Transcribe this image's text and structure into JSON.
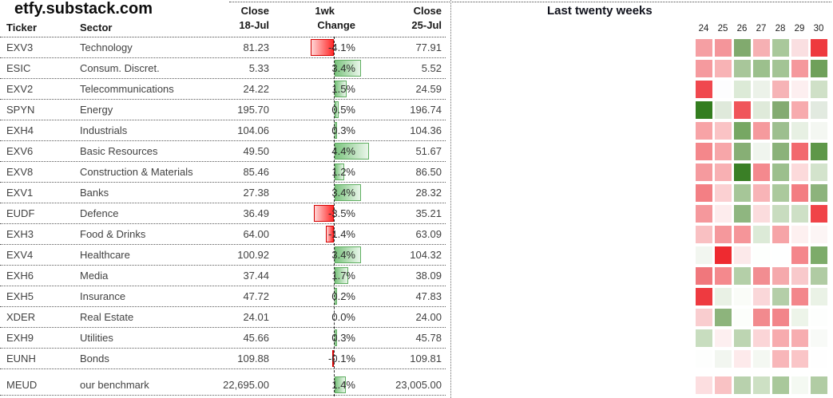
{
  "site_title": "etfy.substack.com",
  "header": {
    "ticker": "Ticker",
    "sector": "Sector",
    "close_prev": [
      "Close",
      "18-Jul"
    ],
    "change": [
      "1wk",
      "Change"
    ],
    "close_last": [
      "Close",
      "25-Jul"
    ]
  },
  "heatmap": {
    "title": "Last twenty weeks",
    "week_labels": [
      "24",
      "25",
      "26",
      "27",
      "28",
      "29",
      "30"
    ]
  },
  "chart_data": {
    "type": "table",
    "title": "etfy.substack.com",
    "columns": [
      "Ticker",
      "Sector",
      "Close 18-Jul",
      "1wk Change",
      "Close 25-Jul",
      "Last twenty weeks"
    ],
    "change_bar_axis": {
      "max_positive_pct": 4.4,
      "max_negative_pct": 4.1
    },
    "rows": [
      {
        "ticker": "EXV3",
        "sector": "Technology",
        "close_prev": "81.23",
        "change_pct": "-4.1%",
        "change_value": -4.1,
        "close_last": "77.91",
        "weekly_heat": [
          "#f59fa3",
          "#f4959a",
          "#81aa6e",
          "#f6b0b3",
          "#a9c89b",
          "#fadfe1",
          "#ee393e"
        ]
      },
      {
        "ticker": "ESIC",
        "sector": "Consum. Discret.",
        "close_prev": "5.33",
        "change_pct": "3.4%",
        "change_value": 3.4,
        "close_last": "5.52",
        "weekly_heat": [
          "#f59a9e",
          "#f8b3b5",
          "#a8c69a",
          "#9cc08d",
          "#a3c495",
          "#f5989c",
          "#6fa05a"
        ]
      },
      {
        "ticker": "EXV2",
        "sector": "Telecommunications",
        "close_prev": "24.22",
        "change_pct": "1.5%",
        "change_value": 1.5,
        "close_last": "24.59",
        "weekly_heat": [
          "#f0484e",
          "#fdfdfe",
          "#dcead7",
          "#ecf2e9",
          "#f6b3b6",
          "#fdeff0",
          "#cfe0c7"
        ]
      },
      {
        "ticker": "SPYN",
        "sector": "Energy",
        "close_prev": "195.70",
        "change_pct": "0.5%",
        "change_value": 0.5,
        "close_last": "196.74",
        "weekly_heat": [
          "#337d1f",
          "#dfe9db",
          "#f0555a",
          "#dfeada",
          "#84ab72",
          "#f7abae",
          "#e2eae0"
        ]
      },
      {
        "ticker": "EXH4",
        "sector": "Industrials",
        "close_prev": "104.06",
        "change_pct": "0.3%",
        "change_value": 0.3,
        "close_last": "104.36",
        "weekly_heat": [
          "#f7a3a6",
          "#fac3c5",
          "#77a763",
          "#f59a9d",
          "#9dbf8f",
          "#e7f0e3",
          "#f4f7f2"
        ]
      },
      {
        "ticker": "EXV6",
        "sector": "Basic Resources",
        "close_prev": "49.50",
        "change_pct": "4.4%",
        "change_value": 4.4,
        "close_last": "51.67",
        "weekly_heat": [
          "#f4878b",
          "#f7a6a9",
          "#87af75",
          "#f0f5ee",
          "#8bb27a",
          "#f2696e",
          "#5e9749"
        ]
      },
      {
        "ticker": "EXV8",
        "sector": "Construction & Materials",
        "close_prev": "85.46",
        "change_pct": "1.2%",
        "change_value": 1.2,
        "close_last": "86.50",
        "weekly_heat": [
          "#f59a9e",
          "#f8b0b3",
          "#3a7f26",
          "#f4898e",
          "#9cbf8d",
          "#fcdadb",
          "#d3e3cc"
        ]
      },
      {
        "ticker": "EXV1",
        "sector": "Banks",
        "close_prev": "27.38",
        "change_pct": "3.4%",
        "change_value": 3.4,
        "close_last": "28.32",
        "weekly_heat": [
          "#f37f84",
          "#fbd0d2",
          "#a6c698",
          "#f8b4b7",
          "#abc99d",
          "#f37d82",
          "#8db37c"
        ]
      },
      {
        "ticker": "EUDF",
        "sector": "Defence",
        "close_prev": "36.49",
        "change_pct": "-3.5%",
        "change_value": -3.5,
        "close_last": "35.21",
        "weekly_heat": [
          "#f5989c",
          "#fdeced",
          "#8fb680",
          "#fbdcdd",
          "#c8dcbf",
          "#cee0c6",
          "#f04348"
        ]
      },
      {
        "ticker": "EXH3",
        "sector": "Food & Drinks",
        "close_prev": "64.00",
        "change_pct": "-1.4%",
        "change_value": -1.4,
        "close_last": "63.09",
        "weekly_heat": [
          "#f9c0c2",
          "#f5989c",
          "#f59599",
          "#dcead7",
          "#f6a4a7",
          "#fdf0f0",
          "#fcf5f5"
        ]
      },
      {
        "ticker": "EXV4",
        "sector": "Healthcare",
        "close_prev": "100.92",
        "change_pct": "3.4%",
        "change_value": 3.4,
        "close_last": "104.32",
        "weekly_heat": [
          "#f2f6f0",
          "#ee2a30",
          "#fce9ea",
          "#fdfffd",
          "#feffff",
          "#f4868b",
          "#7dab6a"
        ]
      },
      {
        "ticker": "EXH6",
        "sector": "Media",
        "close_prev": "37.44",
        "change_pct": "1.7%",
        "change_value": 1.7,
        "close_last": "38.09",
        "weekly_heat": [
          "#f0777c",
          "#f4898d",
          "#b4cfa8",
          "#f28d91",
          "#f5a9ac",
          "#f8c9cb",
          "#b0cba3"
        ]
      },
      {
        "ticker": "EXH5",
        "sector": "Insurance",
        "close_prev": "47.72",
        "change_pct": "0.2%",
        "change_value": 0.2,
        "close_last": "47.83",
        "weekly_heat": [
          "#ee3a40",
          "#e9f1e5",
          "#fafcf8",
          "#fad7d9",
          "#b4cea8",
          "#f3868b",
          "#eaf2e6"
        ]
      },
      {
        "ticker": "XDER",
        "sector": "Real Estate",
        "close_prev": "24.01",
        "change_pct": "0.0%",
        "change_value": 0.0,
        "close_last": "24.00",
        "weekly_heat": [
          "#f9cdcf",
          "#8db47c",
          "#fcfefb",
          "#f28a8e",
          "#f2858a",
          "#edf4e9",
          "#fdfefd"
        ]
      },
      {
        "ticker": "EXH9",
        "sector": "Utilities",
        "close_prev": "45.66",
        "change_pct": "0.3%",
        "change_value": 0.3,
        "close_last": "45.78",
        "weekly_heat": [
          "#c8ddbf",
          "#fdeff0",
          "#bdd5b2",
          "#fbd5d7",
          "#f7abae",
          "#f7adb0",
          "#f8faf7"
        ]
      },
      {
        "ticker": "EUNH",
        "sector": "Bonds",
        "close_prev": "109.88",
        "change_pct": "-0.1%",
        "change_value": -0.1,
        "close_last": "109.81",
        "weekly_heat": [
          "#fdfefd",
          "#f2f6f0",
          "#fdeaeb",
          "#f4f8f2",
          "#f8b6b9",
          "#fac5c7",
          "#fefefe"
        ]
      }
    ],
    "benchmark": {
      "ticker": "MEUD",
      "sector": "our benchmark",
      "close_prev": "22,695.00",
      "change_pct": "1.4%",
      "change_value": 1.4,
      "close_last": "23,005.00",
      "weekly_heat": [
        "#fcdee0",
        "#f9c2c4",
        "#b8d1ad",
        "#cde0c4",
        "#a9c89b",
        "#f4f9f2",
        "#b1cca4"
      ]
    }
  },
  "colors": {
    "bar_positive_fill": "#7cc47f",
    "bar_positive_fade": "#eaf6ea",
    "bar_positive_border": "#5fae61",
    "bar_negative_fill": "#ff2a2a",
    "bar_negative_fade": "#ffd6d6",
    "bar_negative_border": "#d40000"
  }
}
